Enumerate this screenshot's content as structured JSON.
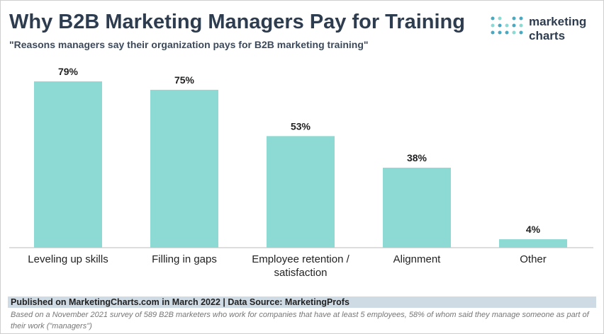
{
  "chart_data": {
    "type": "bar",
    "title": "Why B2B Marketing Managers Pay for Training",
    "subtitle": "\"Reasons managers say their organization pays for B2B marketing training\"",
    "categories": [
      "Leveling up skills",
      "Filling in gaps",
      "Employee retention / satisfaction",
      "Alignment",
      "Other"
    ],
    "values": [
      79,
      75,
      53,
      38,
      4
    ],
    "value_labels": [
      "79%",
      "75%",
      "53%",
      "38%",
      "4%"
    ],
    "color": "#8dd9d4",
    "source": "Published on MarketingCharts.com in March 2022 | Data Source: MarketingProfs",
    "note": "Based on a November 2021 survey of 589 B2B marketers who work for companies that have at least 5 employees, 58% of whom said they manage someone as part of their work (\"managers\")"
  },
  "logo": {
    "line1": "marketing",
    "line2": "charts"
  }
}
